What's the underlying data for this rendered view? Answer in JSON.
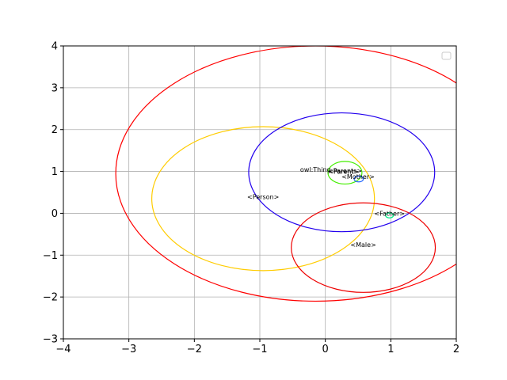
{
  "chart_data": {
    "type": "ellipse-diagram",
    "title": "",
    "xlabel": "",
    "ylabel": "",
    "xlim": [
      -4,
      2
    ],
    "ylim": [
      -3,
      4
    ],
    "x_ticks": [
      -4,
      -3,
      -2,
      -1,
      0,
      1,
      2
    ],
    "y_ticks": [
      -3,
      -2,
      -1,
      0,
      1,
      2,
      3,
      4
    ],
    "x_tick_labels": [
      "−4",
      "−3",
      "−2",
      "−1",
      "0",
      "1",
      "2"
    ],
    "y_tick_labels": [
      "−3",
      "−2",
      "−1",
      "0",
      "1",
      "2",
      "3",
      "4"
    ],
    "grid": true,
    "legend": "upper-right, empty",
    "ellipses": [
      {
        "cx": -0.15,
        "cy": 0.95,
        "rx": 3.05,
        "ry": 3.05,
        "color": "#ff0000"
      },
      {
        "cx": -0.95,
        "cy": 0.35,
        "rx": 1.7,
        "ry": 1.72,
        "color": "#ffcc00"
      },
      {
        "cx": 0.25,
        "cy": 0.98,
        "rx": 1.42,
        "ry": 1.42,
        "color": "#2200ee"
      },
      {
        "cx": 0.58,
        "cy": -0.82,
        "rx": 1.1,
        "ry": 1.07,
        "color": "#ee0000"
      },
      {
        "cx": 0.3,
        "cy": 0.97,
        "rx": 0.26,
        "ry": 0.27,
        "color": "#44ee00"
      },
      {
        "cx": 0.51,
        "cy": 0.82,
        "rx": 0.07,
        "ry": 0.07,
        "color": "#2266ff"
      },
      {
        "cx": 0.98,
        "cy": -0.05,
        "rx": 0.06,
        "ry": 0.06,
        "color": "#00ee88"
      }
    ],
    "annotations": [
      {
        "text": "owl:Thing",
        "x": -0.15,
        "y": 1.05
      },
      {
        "text": "<Parents>",
        "x": 0.3,
        "y": 1.02
      },
      {
        "text": "<Parent>",
        "x": 0.28,
        "y": 1.0
      },
      {
        "text": "<Mother>",
        "x": 0.5,
        "y": 0.88
      },
      {
        "text": "<Person>",
        "x": -0.95,
        "y": 0.4
      },
      {
        "text": "<Father>",
        "x": 0.98,
        "y": 0.0
      },
      {
        "text": "<Male>",
        "x": 0.58,
        "y": -0.75
      }
    ]
  }
}
